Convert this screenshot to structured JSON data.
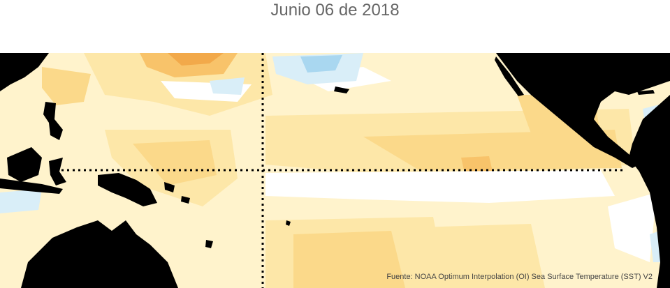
{
  "title": "Junio 06 de 2018",
  "source": "Fuente: NOAA Optimum Interpolation (OI) Sea Surface Temperature (SST) V2",
  "colors": {
    "land": "#000000",
    "neutral": "#ffffff",
    "warm_1": "#fff3cc",
    "warm_2": "#fde7a8",
    "warm_3": "#fbd98a",
    "warm_4": "#f8c36a",
    "warm_5": "#f2a94a",
    "cool_1": "#d9eef8",
    "cool_2": "#a9d7f0",
    "reference_lines": "#000000"
  }
}
